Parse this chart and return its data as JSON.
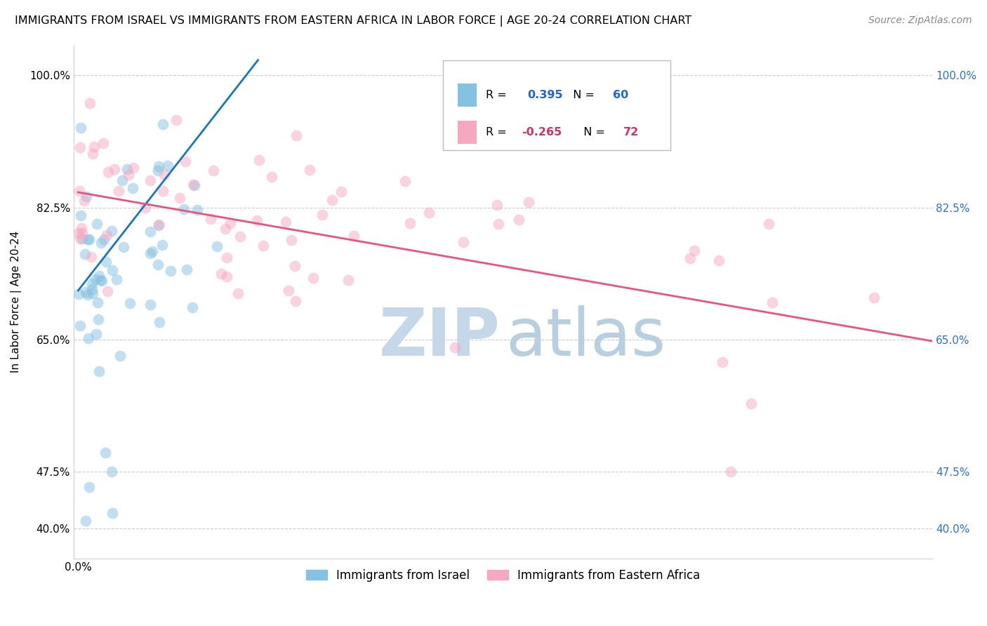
{
  "title": "IMMIGRANTS FROM ISRAEL VS IMMIGRANTS FROM EASTERN AFRICA IN LABOR FORCE | AGE 20-24 CORRELATION CHART",
  "source": "Source: ZipAtlas.com",
  "ylabel": "In Labor Force | Age 20-24",
  "watermark_zip": "ZIP",
  "watermark_atlas": "atlas",
  "israel_R": 0.395,
  "israel_N": 60,
  "eastern_africa_R": -0.265,
  "eastern_africa_N": 72,
  "israel_color": "#85c1e2",
  "eastern_africa_color": "#f5a8c0",
  "israel_line_color": "#1a75bb",
  "eastern_africa_line_color": "#e8547a",
  "background_color": "#ffffff",
  "grid_color": "#cccccc",
  "y_tick_positions": [
    0.4,
    0.475,
    0.65,
    0.825,
    1.0
  ],
  "y_tick_labels": [
    "40.0%",
    "47.5%",
    "65.0%",
    "82.5%",
    "100.0%"
  ],
  "ylim": [
    0.36,
    1.04
  ],
  "xlim": [
    -0.0003,
    0.057
  ],
  "title_fontsize": 11.5,
  "source_fontsize": 10,
  "tick_fontsize": 11,
  "ylabel_fontsize": 11
}
